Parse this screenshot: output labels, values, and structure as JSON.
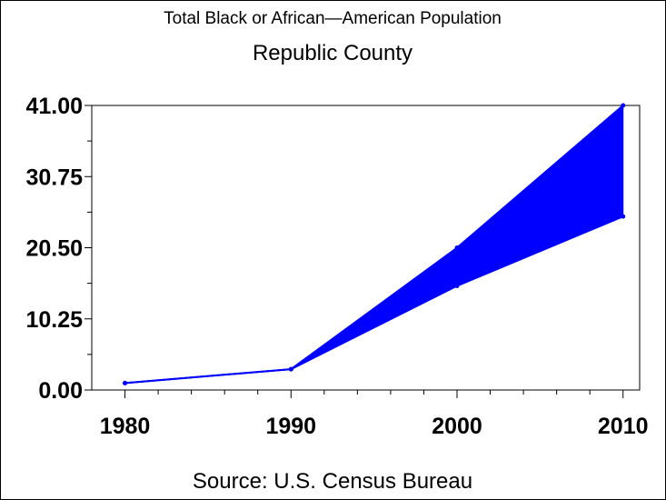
{
  "chart_data": {
    "type": "area",
    "title": "Total Black or African—American Population",
    "subtitle": "Republic County",
    "footnote": "Source: U.S. Census Bureau",
    "xlabel": "",
    "ylabel": "",
    "x": [
      1980,
      1990,
      2000,
      2010
    ],
    "xtick_labels": [
      "1980",
      "1990",
      "2000",
      "2010"
    ],
    "ytick_labels": [
      "0.00",
      "10.25",
      "20.50",
      "30.75",
      "41.00"
    ],
    "ylim": [
      0,
      41
    ],
    "xlim": [
      1978,
      2011
    ],
    "grid": false,
    "series": [
      {
        "values": [
          1,
          3,
          20.5,
          41
        ]
      },
      {
        "values": [
          1,
          3,
          15,
          25
        ]
      }
    ],
    "colors": {
      "line": "#0000ff",
      "fill": "#0000ff",
      "axis": "#000000",
      "background": "#ffffff"
    }
  }
}
